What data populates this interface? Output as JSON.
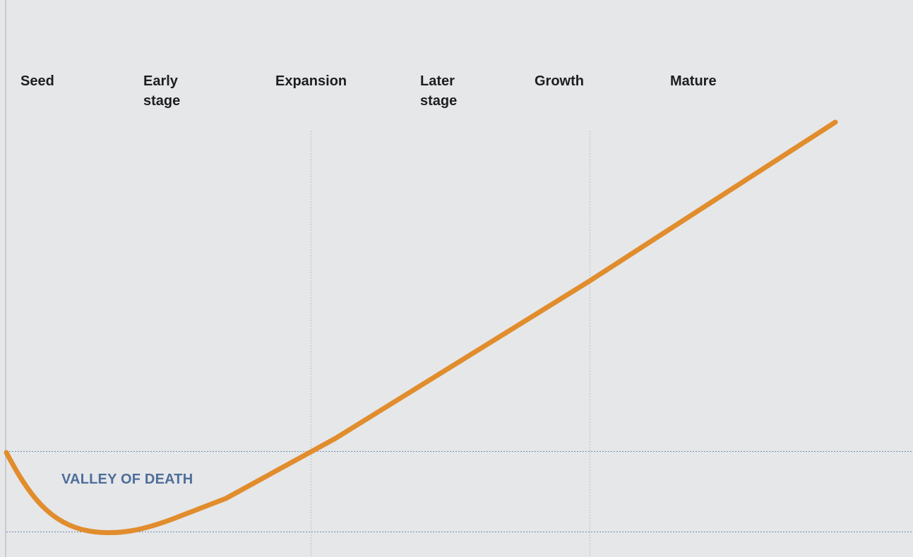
{
  "chart_data": {
    "type": "line",
    "stages": [
      "Seed",
      "Early\nstage",
      "Expansion",
      "Later\nstage",
      "Growth",
      "Mature"
    ],
    "annotations": {
      "zone_label": "VALLEY OF DEATH"
    },
    "series": [
      {
        "values_description_free": true,
        "points": [
          [
            0,
            0.72
          ],
          [
            0.3,
            0.25
          ],
          [
            1.1,
            0.0
          ],
          [
            1.8,
            0.12
          ],
          [
            2.6,
            0.5
          ],
          [
            3.5,
            1.2
          ],
          [
            4.9,
            2.4
          ],
          [
            6.5,
            4.15
          ]
        ]
      }
    ],
    "grid": {
      "vertical_dashed": [
        2.75,
        4.95
      ],
      "horizontal_dotted": true
    },
    "colors": {
      "curve": "#e18d2d",
      "zone_label": "#4e6e9b",
      "dotted_lines": "#6f8bb0",
      "vertical_lines": "#bfc1c4"
    }
  }
}
